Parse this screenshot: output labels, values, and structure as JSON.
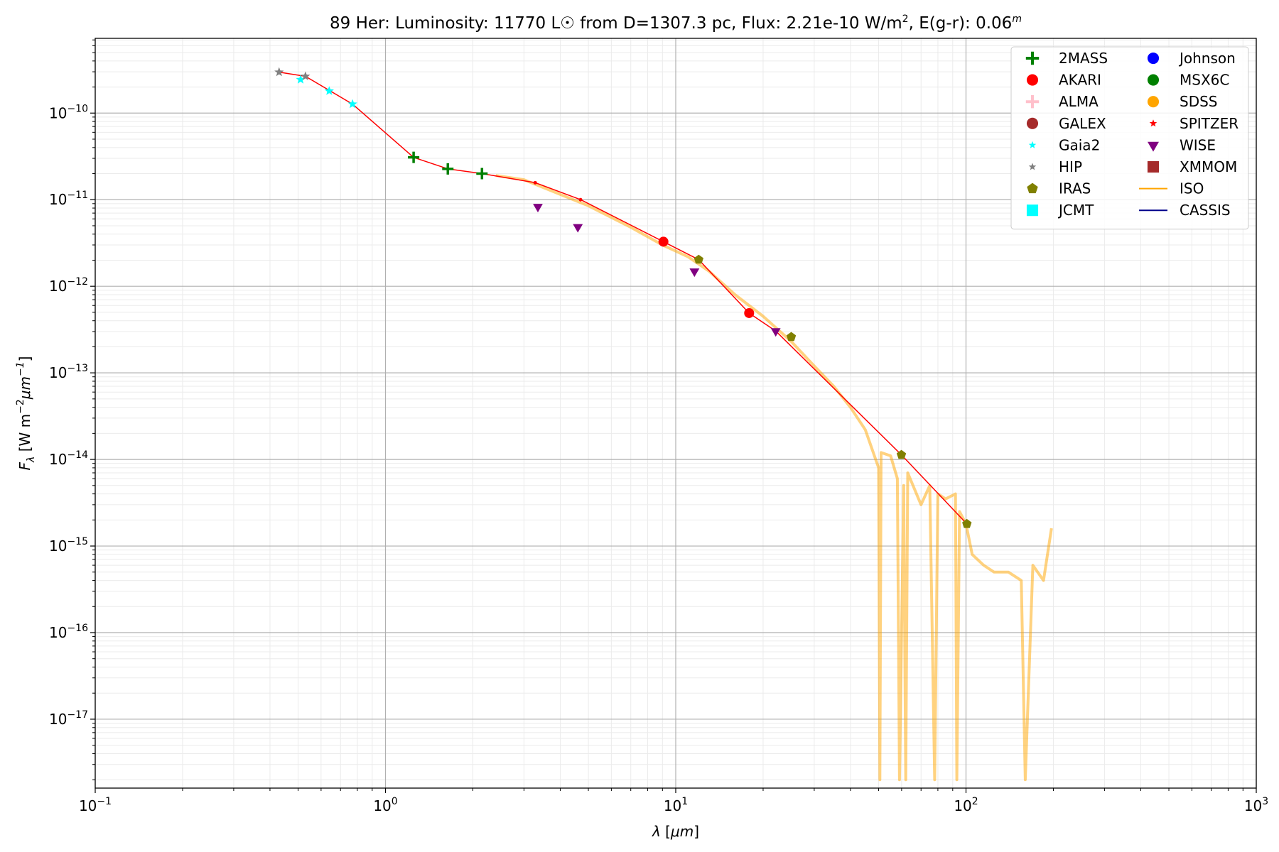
{
  "chart_data": {
    "type": "scatter",
    "title_parts": [
      "89 Her:  Luminosity: 11770 L☉ from D=1307.3 pc, Flux: 2.21e-10 W/m",
      "2",
      ", E(g-r): 0.06",
      "m"
    ],
    "xlabel_parts": [
      "λ",
      " [",
      "μm",
      "]"
    ],
    "ylabel_parts": [
      "F",
      "λ",
      " [W m",
      "−2",
      "μm",
      "−1",
      "]"
    ],
    "xscale": "log",
    "yscale": "log",
    "grid": true,
    "legend": "upper right",
    "xlim": [
      0.1,
      1000
    ],
    "ylim": [
      1.6e-18,
      7.3e-10
    ],
    "xticks": [
      {
        "value": 0.1,
        "label": "10",
        "exp": "−1"
      },
      {
        "value": 1,
        "label": "10",
        "exp": "0"
      },
      {
        "value": 10,
        "label": "10",
        "exp": "1"
      },
      {
        "value": 100,
        "label": "10",
        "exp": "2"
      },
      {
        "value": 1000,
        "label": "10",
        "exp": "3"
      }
    ],
    "yticks": [
      {
        "value": 1e-10,
        "label": "10",
        "exp": "−10"
      },
      {
        "value": 1e-11,
        "label": "10",
        "exp": "−11"
      },
      {
        "value": 1e-12,
        "label": "10",
        "exp": "−12"
      },
      {
        "value": 1e-13,
        "label": "10",
        "exp": "−13"
      },
      {
        "value": 1e-14,
        "label": "10",
        "exp": "−14"
      },
      {
        "value": 1e-15,
        "label": "10",
        "exp": "−15"
      },
      {
        "value": 1e-16,
        "label": "10",
        "exp": "−16"
      },
      {
        "value": 1e-17,
        "label": "10",
        "exp": "−17"
      }
    ],
    "series": [
      {
        "name": "2MASS",
        "color": "#008000",
        "marker": "plus",
        "x": [
          1.25,
          1.64,
          2.15
        ],
        "values": [
          3.08e-11,
          2.27e-11,
          2e-11
        ]
      },
      {
        "name": "AKARI",
        "color": "#ff0000",
        "marker": "circle",
        "x": [
          9.07,
          17.9
        ],
        "values": [
          3.27e-12,
          4.9e-13
        ]
      },
      {
        "name": "ALMA",
        "color": "#ffc0cb",
        "marker": "plus",
        "x": [],
        "values": []
      },
      {
        "name": "GALEX",
        "color": "#a52a2a",
        "marker": "circle",
        "x": [],
        "values": []
      },
      {
        "name": "Gaia2",
        "color": "#00ffff",
        "marker": "star",
        "x": [
          0.51,
          0.64,
          0.77
        ],
        "values": [
          2.44e-10,
          1.8e-10,
          1.27e-10
        ]
      },
      {
        "name": "HIP",
        "color": "#808080",
        "marker": "star",
        "x": [
          0.43,
          0.53
        ],
        "values": [
          2.97e-10,
          2.66e-10
        ]
      },
      {
        "name": "IRAS",
        "color": "#808000",
        "marker": "pentagon",
        "x": [
          12.0,
          25.0,
          59.9,
          100.7
        ],
        "values": [
          2.03e-12,
          2.6e-13,
          1.13e-14,
          1.8e-15
        ]
      },
      {
        "name": "JCMT",
        "color": "#00ffff",
        "marker": "square",
        "x": [],
        "values": []
      },
      {
        "name": "Johnson",
        "color": "#0000ff",
        "marker": "circle",
        "x": [],
        "values": []
      },
      {
        "name": "MSX6C",
        "color": "#008000",
        "marker": "circle",
        "x": [],
        "values": []
      },
      {
        "name": "SDSS",
        "color": "#ffa500",
        "marker": "circle",
        "x": [],
        "values": []
      },
      {
        "name": "SPITZER",
        "color": "#ff0000",
        "marker": "star",
        "x": [],
        "values": []
      },
      {
        "name": "WISE",
        "color": "#800080",
        "marker": "triangle",
        "x": [
          3.35,
          4.6,
          11.6,
          22.1
        ],
        "values": [
          8.3e-12,
          4.85e-12,
          1.49e-12,
          3.04e-13
        ]
      },
      {
        "name": "XMMOM",
        "color": "#a52a2a",
        "marker": "square",
        "x": [],
        "values": []
      },
      {
        "name": "ISO",
        "color": "#ffa500",
        "marker": "line",
        "x": [
          2.4,
          3.0,
          4,
          5,
          7,
          9,
          11,
          13,
          16,
          20,
          25,
          30,
          35,
          40,
          45,
          50,
          50.5,
          51,
          55,
          58,
          59,
          61,
          62,
          63,
          70,
          75,
          78,
          80,
          85,
          92,
          93,
          95,
          100,
          105,
          115,
          125,
          140,
          155,
          160,
          170,
          185,
          197
        ],
        "values": [
          1.9e-11,
          1.7e-11,
          1.15e-11,
          8.5e-12,
          4.8e-12,
          3e-12,
          2.2e-12,
          1.5e-12,
          8e-13,
          4.5e-13,
          2.3e-13,
          1.2e-13,
          7e-14,
          4e-14,
          2.2e-14,
          8e-15,
          2e-18,
          1.2e-14,
          1.1e-14,
          6e-15,
          2e-18,
          5e-15,
          2e-18,
          7e-15,
          3e-15,
          5e-15,
          2e-18,
          4e-15,
          3.5e-15,
          4e-15,
          2e-18,
          2.5e-15,
          1.8e-15,
          8e-16,
          6e-16,
          5e-16,
          5e-16,
          4e-16,
          2e-18,
          6e-16,
          4e-16,
          1.6e-15
        ]
      },
      {
        "name": "CASSIS",
        "color": "#00008b",
        "marker": "line",
        "x": [],
        "values": []
      },
      {
        "color": "#ff0000",
        "marker": "dotline",
        "x": [
          0.43,
          0.53,
          0.77,
          1.25,
          1.64,
          2.15,
          3.28,
          4.7,
          9.07,
          12.0,
          17.9,
          22.1,
          59.9,
          100.7
        ],
        "values": [
          2.97e-10,
          2.66e-10,
          1.27e-10,
          3.08e-11,
          2.27e-11,
          2e-11,
          1.57e-11,
          1e-11,
          3.27e-12,
          2.03e-12,
          4.9e-13,
          3.04e-13,
          1.13e-14,
          1.8e-15
        ]
      }
    ]
  }
}
